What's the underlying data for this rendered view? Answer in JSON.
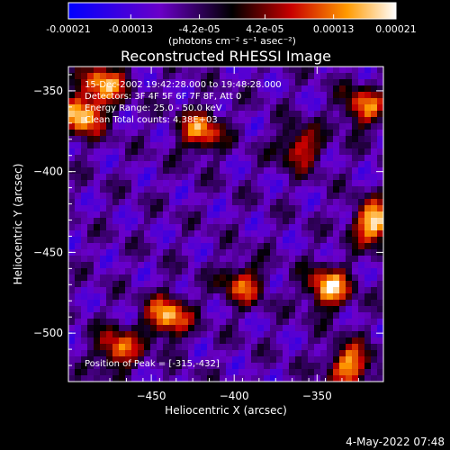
{
  "colorbar": {
    "tick_labels": [
      "-0.00021",
      "-0.00013",
      "-4.2e-05",
      "4.2e-05",
      "0.00013",
      "0.00021"
    ],
    "tick_values": [
      -0.00021,
      -0.00013,
      -4.2e-05,
      4.2e-05,
      0.00013,
      0.00021
    ],
    "range": [
      -0.00021,
      0.00021
    ],
    "units_label": "(photons cm⁻² s⁻¹ asec⁻²)",
    "colors": [
      "#0000ff",
      "#6a00c8",
      "#000000",
      "#c80000",
      "#ff9a00",
      "#ffffff"
    ]
  },
  "chart_data": {
    "type": "heatmap",
    "title": "Reconstructed RHESSI Image",
    "xlabel": "Heliocentric X (arcsec)",
    "ylabel": "Heliocentric Y (arcsec)",
    "xlim": [
      -500,
      -310
    ],
    "ylim": [
      -530,
      -335
    ],
    "x_ticks": [
      -450,
      -400,
      -350
    ],
    "y_ticks": [
      -350,
      -400,
      -450,
      -500
    ],
    "annotations": {
      "time": "15-Dec-2002 19:42:28.000 to 19:48:28.000",
      "detectors": "Detectors: 3F 4F 5F 6F 7F 8F, Att 0",
      "energy": "Energy Range: 25.0 - 50.0 keV",
      "clean": "Clean    Total counts: 4.38E+03",
      "peak": "Position of Peak = [-315,-432]"
    },
    "bright_sources": [
      {
        "x": -492,
        "y": -365,
        "value": 0.00019
      },
      {
        "x": -478,
        "y": -345,
        "value": 0.00015
      },
      {
        "x": -315,
        "y": -432,
        "value": 0.00021
      },
      {
        "x": -343,
        "y": -472,
        "value": 0.00018
      },
      {
        "x": -440,
        "y": -490,
        "value": 0.00017
      },
      {
        "x": -420,
        "y": -375,
        "value": 0.00014
      },
      {
        "x": -322,
        "y": -360,
        "value": 0.00012
      },
      {
        "x": -330,
        "y": -520,
        "value": 0.00016
      },
      {
        "x": -470,
        "y": -510,
        "value": 0.00013
      },
      {
        "x": -395,
        "y": -470,
        "value": 0.0001
      },
      {
        "x": -360,
        "y": -385,
        "value": 0.0001
      }
    ]
  },
  "footer": {
    "timestamp": "4-May-2022 07:48"
  }
}
